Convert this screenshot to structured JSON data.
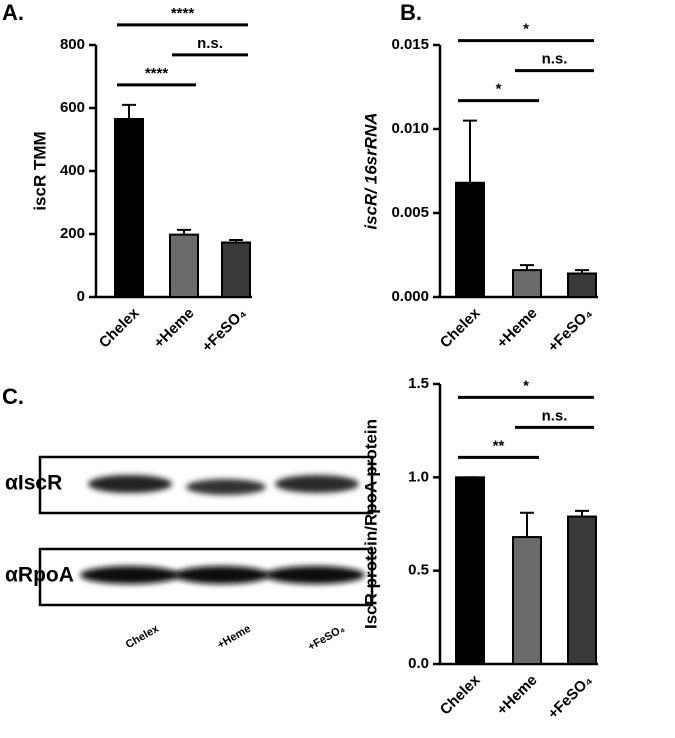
{
  "panel_labels": [
    "A.",
    "B.",
    "C."
  ],
  "chart_data": [
    {
      "type": "bar",
      "y_label": "iscR TMM",
      "categories": [
        "Chelex",
        "+Heme",
        "+FeSO₄"
      ],
      "values": [
        565,
        198,
        173
      ],
      "errors": [
        45,
        15,
        8
      ],
      "colors": [
        "#000000",
        "#6b6b6b",
        "#393939"
      ],
      "ylim": [
        0,
        800
      ],
      "yticks": [
        0,
        200,
        400,
        600,
        800
      ],
      "annotations": [
        {
          "text": "****",
          "between": [
            "Chelex",
            "+Heme"
          ]
        },
        {
          "text": "n.s.",
          "between": [
            "+Heme",
            "+FeSO₄"
          ]
        },
        {
          "text": "****",
          "between": [
            "Chelex",
            "+FeSO₄"
          ]
        }
      ]
    },
    {
      "type": "bar",
      "y_label": "iscR/ 16srRNA",
      "categories": [
        "Chelex",
        "+Heme",
        "+FeSO₄"
      ],
      "values": [
        0.0068,
        0.0016,
        0.0014
      ],
      "errors": [
        0.0037,
        0.0003,
        0.0002
      ],
      "colors": [
        "#000000",
        "#6b6b6b",
        "#393939"
      ],
      "ylim": [
        0,
        0.015
      ],
      "yticks": [
        {
          "value": 0,
          "label": "0.000"
        },
        {
          "value": 0.005,
          "label": "0.005"
        },
        {
          "value": 0.01,
          "label": "0.010"
        },
        {
          "value": 0.015,
          "label": "0.015"
        }
      ],
      "annotations": [
        {
          "text": "*",
          "between": [
            "Chelex",
            "+Heme"
          ]
        },
        {
          "text": "n.s.",
          "between": [
            "+Heme",
            "+FeSO₄"
          ]
        },
        {
          "text": "*",
          "between": [
            "Chelex",
            "+FeSO₄"
          ]
        }
      ]
    },
    {
      "type": "bar",
      "y_label": "IscR protein/RpoA protein",
      "categories": [
        "Chelex",
        "+Heme",
        "+FeSO₄"
      ],
      "values": [
        1.0,
        0.68,
        0.79
      ],
      "errors": [
        0,
        0.13,
        0.03
      ],
      "colors": [
        "#000000",
        "#6b6b6b",
        "#393939"
      ],
      "ylim": [
        0,
        1.5
      ],
      "yticks": [
        {
          "value": 0,
          "label": "0.0"
        },
        0.5,
        {
          "value": 1,
          "label": "1.0"
        },
        1.5
      ],
      "annotations": [
        {
          "text": "**",
          "between": [
            "Chelex",
            "+Heme"
          ]
        },
        {
          "text": "n.s.",
          "between": [
            "+Heme",
            "+FeSO₄"
          ]
        },
        {
          "text": "*",
          "between": [
            "Chelex",
            "+FeSO₄"
          ]
        }
      ]
    }
  ],
  "blot": {
    "rows": [
      "αIscR",
      "αRpoA"
    ],
    "lanes": [
      "Chelex",
      "+Heme",
      "+FeSO₄"
    ]
  }
}
